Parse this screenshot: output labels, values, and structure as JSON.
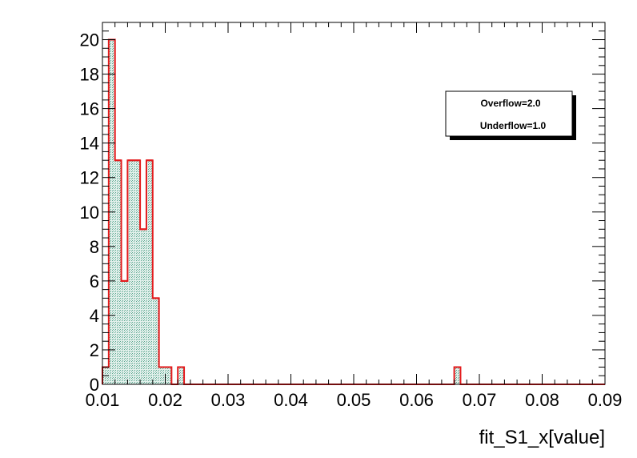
{
  "chart_data": {
    "type": "bar",
    "title": "",
    "xlabel": "fit_S1_x[value]",
    "ylabel": "",
    "xlim": [
      0.01,
      0.09
    ],
    "ylim": [
      0,
      21
    ],
    "bin_width": 0.001,
    "x_ticks": [
      "0.01",
      "0.02",
      "0.03",
      "0.04",
      "0.05",
      "0.06",
      "0.07",
      "0.08",
      "0.09"
    ],
    "y_ticks": [
      "0",
      "2",
      "4",
      "6",
      "8",
      "10",
      "12",
      "14",
      "16",
      "18",
      "20"
    ],
    "bins": [
      {
        "x": 0.01,
        "value": 1
      },
      {
        "x": 0.011,
        "value": 20
      },
      {
        "x": 0.012,
        "value": 13
      },
      {
        "x": 0.013,
        "value": 6
      },
      {
        "x": 0.014,
        "value": 13
      },
      {
        "x": 0.015,
        "value": 13
      },
      {
        "x": 0.016,
        "value": 9
      },
      {
        "x": 0.017,
        "value": 13
      },
      {
        "x": 0.018,
        "value": 5
      },
      {
        "x": 0.019,
        "value": 1
      },
      {
        "x": 0.02,
        "value": 1
      },
      {
        "x": 0.022,
        "value": 1
      },
      {
        "x": 0.066,
        "value": 1
      }
    ],
    "legend": {
      "placement": "top-right",
      "lines": [
        "Overflow=2.0",
        "Underflow=1.0"
      ]
    },
    "grid": false,
    "colors": {
      "line": "#e41a1c",
      "fill": "#b7dccf"
    }
  }
}
